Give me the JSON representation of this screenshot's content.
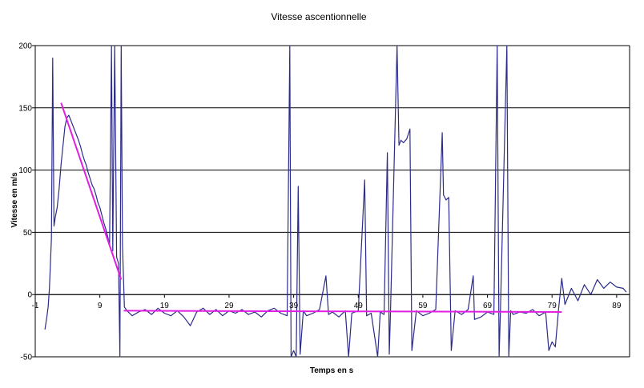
{
  "chart_data": {
    "type": "line",
    "title": "Vitesse ascentionnelle",
    "xlabel": "Temps en s",
    "ylabel": "Vitesse en m/s",
    "xlim": [
      -1,
      91
    ],
    "ylim": [
      -50,
      200
    ],
    "x_ticks": [
      "-1",
      "9",
      "19",
      "29",
      "39",
      "49",
      "59",
      "69",
      "79",
      "89"
    ],
    "y_ticks": [
      "200",
      "150",
      "100",
      "50",
      "0",
      "-50"
    ],
    "grid": "horizontal",
    "legend": "none",
    "colors": {
      "series": "#2b2b8a",
      "trend": "#e21ee2",
      "grid": "#000000"
    },
    "series": [
      {
        "values_note": "",
        "points": [
          [
            0.5,
            -28
          ],
          [
            0.8,
            -18
          ],
          [
            1.0,
            -10
          ],
          [
            1.2,
            5
          ],
          [
            1.5,
            45
          ],
          [
            1.7,
            190
          ],
          [
            1.9,
            55
          ],
          [
            2.1,
            62
          ],
          [
            2.4,
            70
          ],
          [
            2.7,
            85
          ],
          [
            3.0,
            105
          ],
          [
            3.3,
            120
          ],
          [
            3.6,
            135
          ],
          [
            3.9,
            142
          ],
          [
            4.2,
            144
          ],
          [
            4.5,
            140
          ],
          [
            4.8,
            136
          ],
          [
            5.1,
            132
          ],
          [
            5.4,
            128
          ],
          [
            5.7,
            124
          ],
          [
            6.0,
            119
          ],
          [
            6.3,
            113
          ],
          [
            6.6,
            108
          ],
          [
            6.9,
            104
          ],
          [
            7.2,
            98
          ],
          [
            7.5,
            93
          ],
          [
            7.8,
            88
          ],
          [
            8.1,
            85
          ],
          [
            8.4,
            80
          ],
          [
            8.7,
            74
          ],
          [
            9.0,
            70
          ],
          [
            9.3,
            64
          ],
          [
            9.6,
            58
          ],
          [
            9.9,
            53
          ],
          [
            10.2,
            47
          ],
          [
            10.5,
            40
          ],
          [
            10.8,
            200
          ],
          [
            11.0,
            35
          ],
          [
            11.3,
            200
          ],
          [
            11.6,
            30
          ],
          [
            11.9,
            25
          ],
          [
            12.1,
            -50
          ],
          [
            12.3,
            200
          ],
          [
            12.5,
            40
          ],
          [
            12.8,
            -10
          ],
          [
            13.2,
            -13
          ],
          [
            14,
            -17
          ],
          [
            15,
            -14
          ],
          [
            16,
            -12
          ],
          [
            17,
            -16
          ],
          [
            18,
            -11
          ],
          [
            19,
            -15
          ],
          [
            20,
            -17
          ],
          [
            21,
            -13
          ],
          [
            22,
            -18
          ],
          [
            23,
            -25
          ],
          [
            24,
            -14
          ],
          [
            25,
            -11
          ],
          [
            26,
            -16
          ],
          [
            27,
            -12
          ],
          [
            28,
            -17
          ],
          [
            29,
            -13
          ],
          [
            30,
            -15
          ],
          [
            31,
            -12
          ],
          [
            32,
            -16
          ],
          [
            33,
            -14
          ],
          [
            34,
            -18
          ],
          [
            35,
            -13
          ],
          [
            36,
            -11
          ],
          [
            37,
            -15
          ],
          [
            38,
            -17
          ],
          [
            38.4,
            200
          ],
          [
            38.6,
            -50
          ],
          [
            39,
            -45
          ],
          [
            39.4,
            -50
          ],
          [
            39.7,
            87
          ],
          [
            40,
            -48
          ],
          [
            40.5,
            -13
          ],
          [
            41,
            -17
          ],
          [
            42,
            -15
          ],
          [
            43,
            -12
          ],
          [
            44,
            15
          ],
          [
            44.4,
            -16
          ],
          [
            45,
            -14
          ],
          [
            46,
            -18
          ],
          [
            47,
            -13
          ],
          [
            47.5,
            -50
          ],
          [
            48,
            -15
          ],
          [
            49,
            -13
          ],
          [
            50,
            92
          ],
          [
            50.3,
            -17
          ],
          [
            51,
            -15
          ],
          [
            52,
            -50
          ],
          [
            52.4,
            -14
          ],
          [
            53,
            -16
          ],
          [
            53.5,
            114
          ],
          [
            53.8,
            -48
          ],
          [
            54,
            -12
          ],
          [
            55,
            200
          ],
          [
            55.3,
            120
          ],
          [
            55.6,
            124
          ],
          [
            56,
            122
          ],
          [
            56.5,
            125
          ],
          [
            57,
            133
          ],
          [
            57.3,
            -45
          ],
          [
            58,
            -13
          ],
          [
            59,
            -17
          ],
          [
            60,
            -15
          ],
          [
            61,
            -12
          ],
          [
            62,
            130
          ],
          [
            62.2,
            80
          ],
          [
            62.6,
            76
          ],
          [
            63,
            78
          ],
          [
            63.4,
            -45
          ],
          [
            64,
            -13
          ],
          [
            65,
            -16
          ],
          [
            66,
            -12
          ],
          [
            66.8,
            15
          ],
          [
            67,
            -20
          ],
          [
            68,
            -18
          ],
          [
            69,
            -14
          ],
          [
            70,
            -16
          ],
          [
            70.5,
            200
          ],
          [
            70.8,
            -50
          ],
          [
            71,
            -15
          ],
          [
            72,
            200
          ],
          [
            72.3,
            -50
          ],
          [
            72.6,
            -13
          ],
          [
            73,
            -16
          ],
          [
            74,
            -14
          ],
          [
            75,
            -15
          ],
          [
            76,
            -12
          ],
          [
            77,
            -17
          ],
          [
            78,
            -14
          ],
          [
            78.5,
            -45
          ],
          [
            79,
            -38
          ],
          [
            79.5,
            -42
          ],
          [
            80,
            -12
          ],
          [
            80.5,
            13
          ],
          [
            81,
            -8
          ],
          [
            82,
            5
          ],
          [
            83,
            -5
          ],
          [
            84,
            8
          ],
          [
            85,
            0
          ],
          [
            86,
            12
          ],
          [
            87,
            5
          ],
          [
            88,
            10
          ],
          [
            89,
            6
          ],
          [
            90,
            5
          ],
          [
            90.5,
            2
          ]
        ]
      },
      {
        "points": [
          [
            3.0,
            154
          ],
          [
            12.3,
            12
          ]
        ]
      },
      {
        "points": [
          [
            12.7,
            -13
          ],
          [
            80.5,
            -14
          ]
        ]
      }
    ]
  }
}
